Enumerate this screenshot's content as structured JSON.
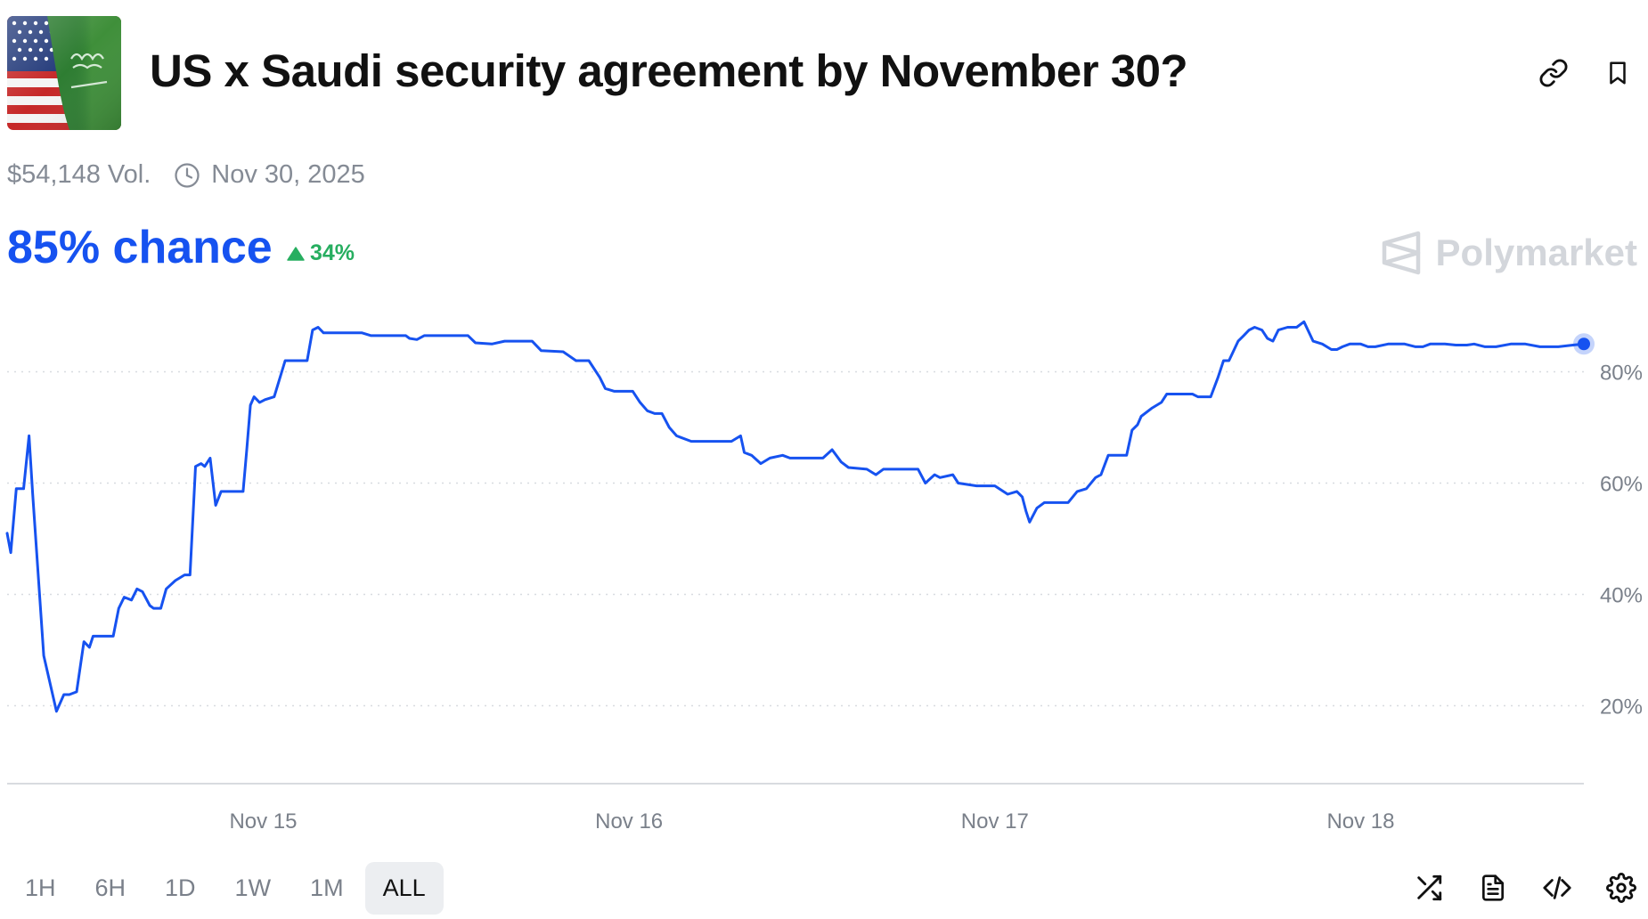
{
  "header": {
    "title": "US x Saudi security agreement by November 30?",
    "volume": "$54,148 Vol.",
    "end_date": "Nov 30, 2025",
    "flag_icon": "us-saudi-flags-icon",
    "link_icon": "link-icon",
    "bookmark_icon": "bookmark-icon"
  },
  "summary": {
    "chance": "85% chance",
    "change": "34%",
    "change_direction": "up",
    "brand": "Polymarket"
  },
  "colors": {
    "line": "#1652f0",
    "up": "#27ae60",
    "grid": "#d8dbe0",
    "muted": "#858b95"
  },
  "chart_data": {
    "type": "line",
    "xlabel": "",
    "ylabel": "",
    "x_unit": "days (Nov 14.30 = start)",
    "x_ticks": [
      {
        "x": 15,
        "label": "Nov 15"
      },
      {
        "x": 16,
        "label": "Nov 16"
      },
      {
        "x": 17,
        "label": "Nov 17"
      },
      {
        "x": 18,
        "label": "Nov 18"
      }
    ],
    "y_ticks": [
      {
        "y": 20,
        "label": "20%"
      },
      {
        "y": 40,
        "label": "40%"
      },
      {
        "y": 60,
        "label": "60%"
      },
      {
        "y": 80,
        "label": "80%"
      }
    ],
    "xlim": [
      14.3,
      18.61
    ],
    "ylim": [
      6,
      94
    ],
    "grid": true,
    "last_point_marker": true,
    "series": [
      {
        "points": [
          [
            14.3,
            51
          ],
          [
            14.31,
            47.5
          ],
          [
            14.325,
            59
          ],
          [
            14.345,
            59
          ],
          [
            14.36,
            68.5
          ],
          [
            14.37,
            58
          ],
          [
            14.4,
            29
          ],
          [
            14.435,
            19
          ],
          [
            14.455,
            22
          ],
          [
            14.47,
            22
          ],
          [
            14.49,
            22.5
          ],
          [
            14.51,
            31.5
          ],
          [
            14.525,
            30.5
          ],
          [
            14.535,
            32.5
          ],
          [
            14.59,
            32.5
          ],
          [
            14.605,
            37.5
          ],
          [
            14.62,
            39.5
          ],
          [
            14.64,
            39
          ],
          [
            14.655,
            41
          ],
          [
            14.67,
            40.5
          ],
          [
            14.69,
            38
          ],
          [
            14.7,
            37.5
          ],
          [
            14.72,
            37.5
          ],
          [
            14.735,
            41
          ],
          [
            14.76,
            42.5
          ],
          [
            14.785,
            43.5
          ],
          [
            14.8,
            43.5
          ],
          [
            14.815,
            63
          ],
          [
            14.83,
            63.5
          ],
          [
            14.84,
            63
          ],
          [
            14.855,
            64.5
          ],
          [
            14.87,
            56
          ],
          [
            14.885,
            58.5
          ],
          [
            14.92,
            58.5
          ],
          [
            14.945,
            58.5
          ],
          [
            14.955,
            66
          ],
          [
            14.965,
            74
          ],
          [
            14.975,
            75.5
          ],
          [
            14.99,
            74.5
          ],
          [
            15.005,
            75
          ],
          [
            15.03,
            75.5
          ],
          [
            15.06,
            82
          ],
          [
            15.12,
            82
          ],
          [
            15.135,
            87.5
          ],
          [
            15.15,
            88
          ],
          [
            15.165,
            87
          ],
          [
            15.235,
            87
          ],
          [
            15.27,
            87
          ],
          [
            15.295,
            86.5
          ],
          [
            15.39,
            86.5
          ],
          [
            15.4,
            86
          ],
          [
            15.42,
            85.8
          ],
          [
            15.44,
            86.5
          ],
          [
            15.56,
            86.5
          ],
          [
            15.58,
            85.2
          ],
          [
            15.625,
            85
          ],
          [
            15.66,
            85.5
          ],
          [
            15.735,
            85.5
          ],
          [
            15.76,
            83.8
          ],
          [
            15.82,
            83.6
          ],
          [
            15.855,
            82
          ],
          [
            15.89,
            82
          ],
          [
            15.92,
            79
          ],
          [
            15.935,
            77
          ],
          [
            15.96,
            76.5
          ],
          [
            16.01,
            76.5
          ],
          [
            16.03,
            74.5
          ],
          [
            16.05,
            73
          ],
          [
            16.07,
            72.5
          ],
          [
            16.09,
            72.5
          ],
          [
            16.11,
            70
          ],
          [
            16.13,
            68.5
          ],
          [
            16.17,
            67.5
          ],
          [
            16.28,
            67.5
          ],
          [
            16.305,
            68.5
          ],
          [
            16.315,
            65.5
          ],
          [
            16.335,
            65
          ],
          [
            16.36,
            63.5
          ],
          [
            16.385,
            64.5
          ],
          [
            16.42,
            65
          ],
          [
            16.44,
            64.5
          ],
          [
            16.5,
            64.5
          ],
          [
            16.53,
            64.5
          ],
          [
            16.555,
            66
          ],
          [
            16.58,
            63.8
          ],
          [
            16.6,
            62.8
          ],
          [
            16.65,
            62.5
          ],
          [
            16.675,
            61.5
          ],
          [
            16.695,
            62.5
          ],
          [
            16.79,
            62.5
          ],
          [
            16.81,
            60
          ],
          [
            16.835,
            61.5
          ],
          [
            16.85,
            61
          ],
          [
            16.885,
            61.5
          ],
          [
            16.9,
            60
          ],
          [
            16.95,
            59.5
          ],
          [
            17.0,
            59.5
          ],
          [
            17.035,
            58
          ],
          [
            17.06,
            58.5
          ],
          [
            17.075,
            57.5
          ],
          [
            17.085,
            55
          ],
          [
            17.095,
            53
          ],
          [
            17.115,
            55.5
          ],
          [
            17.135,
            56.5
          ],
          [
            17.2,
            56.5
          ],
          [
            17.225,
            58.5
          ],
          [
            17.25,
            59
          ],
          [
            17.275,
            61
          ],
          [
            17.29,
            61.5
          ],
          [
            17.31,
            65
          ],
          [
            17.36,
            65
          ],
          [
            17.375,
            69.5
          ],
          [
            17.39,
            70.5
          ],
          [
            17.4,
            72
          ],
          [
            17.43,
            73.5
          ],
          [
            17.455,
            74.5
          ],
          [
            17.47,
            76
          ],
          [
            17.54,
            76
          ],
          [
            17.555,
            75.5
          ],
          [
            17.59,
            75.5
          ],
          [
            17.61,
            79
          ],
          [
            17.625,
            82
          ],
          [
            17.64,
            82
          ],
          [
            17.665,
            85.5
          ],
          [
            17.68,
            86.5
          ],
          [
            17.695,
            87.5
          ],
          [
            17.71,
            88
          ],
          [
            17.73,
            87.5
          ],
          [
            17.745,
            86
          ],
          [
            17.76,
            85.5
          ],
          [
            17.775,
            87.5
          ],
          [
            17.8,
            88
          ],
          [
            17.825,
            88
          ],
          [
            17.845,
            89
          ],
          [
            17.87,
            85.5
          ],
          [
            17.895,
            85
          ],
          [
            17.92,
            84
          ],
          [
            17.935,
            84
          ],
          [
            17.95,
            84.5
          ],
          [
            17.97,
            85
          ],
          [
            18.0,
            85
          ],
          [
            18.02,
            84.5
          ],
          [
            18.04,
            84.5
          ],
          [
            18.075,
            85
          ],
          [
            18.12,
            85
          ],
          [
            18.15,
            84.5
          ],
          [
            18.17,
            84.5
          ],
          [
            18.19,
            85
          ],
          [
            18.23,
            85
          ],
          [
            18.26,
            84.8
          ],
          [
            18.29,
            84.8
          ],
          [
            18.31,
            85
          ],
          [
            18.34,
            84.5
          ],
          [
            18.37,
            84.5
          ],
          [
            18.41,
            85
          ],
          [
            18.45,
            85
          ],
          [
            18.49,
            84.5
          ],
          [
            18.54,
            84.5
          ],
          [
            18.58,
            84.8
          ],
          [
            18.61,
            85
          ]
        ]
      }
    ]
  },
  "ranges": [
    {
      "label": "1H",
      "active": false
    },
    {
      "label": "6H",
      "active": false
    },
    {
      "label": "1D",
      "active": false
    },
    {
      "label": "1W",
      "active": false
    },
    {
      "label": "1M",
      "active": false
    },
    {
      "label": "ALL",
      "active": true
    }
  ],
  "tools": [
    "shuffle-icon",
    "document-icon",
    "code-icon",
    "settings-icon"
  ]
}
